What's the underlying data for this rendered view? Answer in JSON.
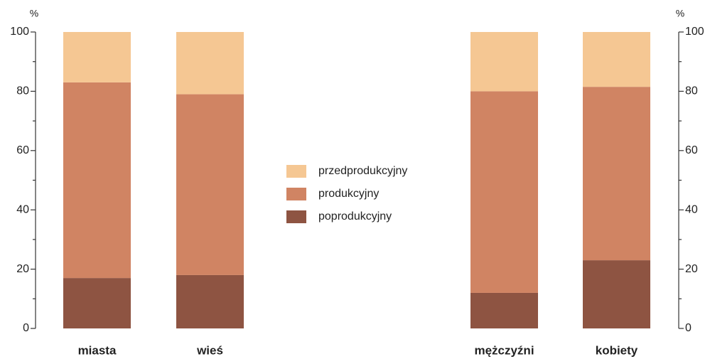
{
  "chart_data": [
    {
      "type": "bar",
      "stacked": true,
      "ylabel": "%",
      "ylim": [
        0,
        100
      ],
      "yticks": [
        0,
        20,
        40,
        60,
        80,
        100
      ],
      "minor_yticks": [
        10,
        30,
        50,
        70,
        90
      ],
      "axis_side": "left",
      "categories": [
        "miasta",
        "wieś"
      ],
      "series": [
        {
          "name": "poprodukcyjny",
          "color": "#8e5442",
          "values": [
            17,
            18
          ]
        },
        {
          "name": "produkcyjny",
          "color": "#d08463",
          "values": [
            66,
            61
          ]
        },
        {
          "name": "przedprodukcyjny",
          "color": "#f5c793",
          "values": [
            17,
            21
          ]
        }
      ]
    },
    {
      "type": "bar",
      "stacked": true,
      "ylabel": "%",
      "ylim": [
        0,
        100
      ],
      "yticks": [
        0,
        20,
        40,
        60,
        80,
        100
      ],
      "minor_yticks": [
        10,
        30,
        50,
        70,
        90
      ],
      "axis_side": "right",
      "categories": [
        "mężczyźni",
        "kobiety"
      ],
      "series": [
        {
          "color": "#8e5442",
          "values": [
            12,
            23
          ]
        },
        {
          "color": "#d08463",
          "values": [
            68,
            58.5
          ]
        },
        {
          "color": "#f5c793",
          "values": [
            20,
            18.5
          ]
        }
      ]
    }
  ]
}
